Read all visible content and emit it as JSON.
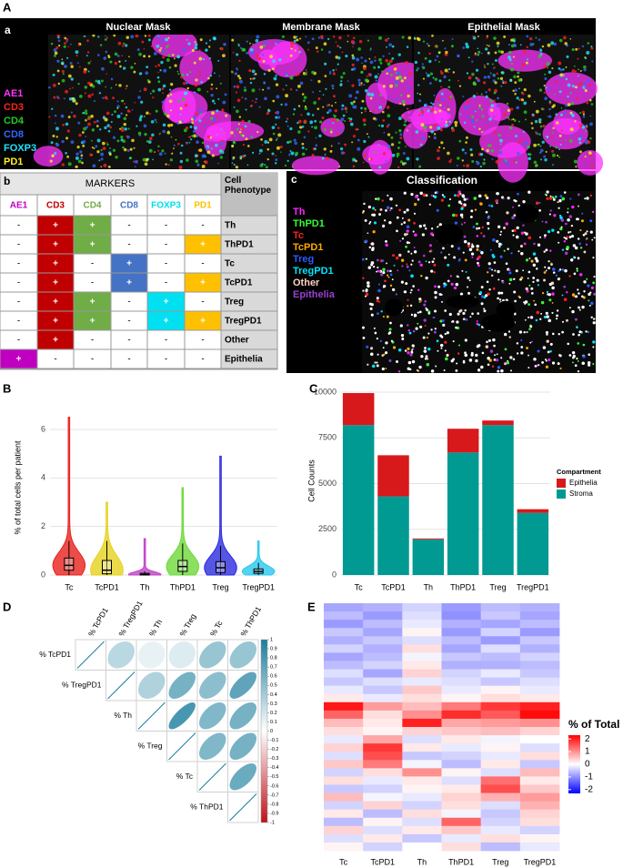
{
  "panel_a": {
    "figure_label": "A",
    "label": "a",
    "images": [
      "Nuclear Mask",
      "Membrane Mask",
      "Epithelial Mask"
    ],
    "markers": [
      {
        "name": "AE1",
        "color": "#ff33ff"
      },
      {
        "name": "CD3",
        "color": "#ff2020"
      },
      {
        "name": "CD4",
        "color": "#22cc22"
      },
      {
        "name": "CD8",
        "color": "#3366ff"
      },
      {
        "name": "FOXP3",
        "color": "#22e5ff"
      },
      {
        "name": "PD1",
        "color": "#ffee22"
      }
    ]
  },
  "panel_b": {
    "label": "b",
    "header": "MARKERS",
    "phenotype_header": "Cell Phenotype",
    "columns": [
      {
        "name": "AE1",
        "color": "#c000c0"
      },
      {
        "name": "CD3",
        "color": "#c00000"
      },
      {
        "name": "CD4",
        "color": "#70ad47"
      },
      {
        "name": "CD8",
        "color": "#4472c4"
      },
      {
        "name": "FOXP3",
        "color": "#00e0f0"
      },
      {
        "name": "PD1",
        "color": "#ffc000"
      }
    ],
    "rows": [
      {
        "cells": [
          "-",
          "+",
          "+",
          "-",
          "-",
          "-"
        ],
        "phenotype": "Th"
      },
      {
        "cells": [
          "-",
          "+",
          "+",
          "-",
          "-",
          "+"
        ],
        "phenotype": "ThPD1"
      },
      {
        "cells": [
          "-",
          "+",
          "-",
          "+",
          "-",
          "-"
        ],
        "phenotype": "Tc"
      },
      {
        "cells": [
          "-",
          "+",
          "-",
          "+",
          "-",
          "+"
        ],
        "phenotype": "TcPD1"
      },
      {
        "cells": [
          "-",
          "+",
          "+",
          "-",
          "+",
          "-"
        ],
        "phenotype": "Treg"
      },
      {
        "cells": [
          "-",
          "+",
          "+",
          "-",
          "+",
          "+"
        ],
        "phenotype": "TregPD1"
      },
      {
        "cells": [
          "-",
          "+",
          "-",
          "-",
          "-",
          "-"
        ],
        "phenotype": "Other"
      },
      {
        "cells": [
          "+",
          "-",
          "-",
          "-",
          "-",
          "-"
        ],
        "phenotype": "Epithelia"
      }
    ]
  },
  "panel_c": {
    "label": "c",
    "title": "Classification",
    "classes": [
      {
        "name": "Th",
        "color": "#ff22ff"
      },
      {
        "name": "ThPD1",
        "color": "#33ff33"
      },
      {
        "name": "Tc",
        "color": "#ff2020"
      },
      {
        "name": "TcPD1",
        "color": "#ffaa00"
      },
      {
        "name": "Treg",
        "color": "#2a5cff"
      },
      {
        "name": "TregPD1",
        "color": "#00e5ff"
      },
      {
        "name": "Other",
        "color": "#ffd0c0"
      },
      {
        "name": "Epithelia",
        "color": "#9a3fcf"
      }
    ]
  },
  "chart_data": [
    {
      "type": "box",
      "panel_label": "B",
      "y_label": "% of total cells per patient",
      "categories": [
        "Tc",
        "TcPD1",
        "Th",
        "ThPD1",
        "Treg",
        "TregPD1"
      ],
      "colors": [
        "#e8201c",
        "#e6d21e",
        "#c040c8",
        "#6ed83a",
        "#2a2ae0",
        "#28c8ee"
      ],
      "whisker_low": [
        0,
        0,
        0,
        0,
        0,
        0
      ],
      "q1": [
        0.2,
        0.05,
        0,
        0.15,
        0.1,
        0.07
      ],
      "median": [
        0.4,
        0.2,
        0.02,
        0.35,
        0.3,
        0.15
      ],
      "q3": [
        0.7,
        0.6,
        0.07,
        0.6,
        0.55,
        0.25
      ],
      "whisker_high": [
        1.4,
        1.4,
        0.15,
        1.3,
        1.2,
        0.5
      ],
      "max": [
        6.5,
        3.0,
        1.5,
        3.6,
        4.9,
        1.4
      ],
      "ylim": [
        0,
        7.2
      ],
      "yticks": [
        0,
        2,
        4,
        6
      ],
      "grid": true
    },
    {
      "type": "stacked_bar",
      "panel_label": "C",
      "y_label": "Cell Counts",
      "categories": [
        "Tc",
        "TcPD1",
        "Th",
        "ThPD1",
        "Treg",
        "TregPD1"
      ],
      "legend_title": "Compartment",
      "legend": "right",
      "series": [
        {
          "name": "Epithelia",
          "color": "#d7191c",
          "values": [
            1750,
            2250,
            50,
            1300,
            250,
            200
          ]
        },
        {
          "name": "Stroma",
          "color": "#009a93",
          "values": [
            8200,
            4300,
            1950,
            6700,
            8200,
            3400
          ]
        }
      ],
      "ylim": [
        0,
        10300
      ],
      "yticks": [
        0,
        2500,
        5000,
        7500,
        10000
      ],
      "grid": true
    },
    {
      "type": "correlation",
      "panel_label": "D",
      "labels": [
        "% TcPD1",
        "% TregPD1",
        "% Th",
        "% Treg",
        "% Tc",
        "% ThPD1"
      ],
      "matrix": [
        [
          1,
          0.3,
          0.1,
          0.15,
          0.45,
          0.45
        ],
        [
          null,
          1,
          0.35,
          0.6,
          0.5,
          0.7
        ],
        [
          null,
          null,
          1,
          0.8,
          0.55,
          0.6
        ],
        [
          null,
          null,
          null,
          1,
          0.55,
          0.6
        ],
        [
          null,
          null,
          null,
          null,
          1,
          0.65
        ],
        [
          null,
          null,
          null,
          null,
          null,
          1
        ]
      ],
      "clim": [
        -1,
        1
      ],
      "cticks": [
        1,
        0.9,
        0.8,
        0.7,
        0.6,
        0.5,
        0.4,
        0.3,
        0.2,
        0.1,
        0,
        -0.1,
        -0.2,
        -0.3,
        -0.4,
        -0.5,
        -0.6,
        -0.7,
        -0.8,
        -0.9,
        -1
      ],
      "colorscale": [
        "#c0101a",
        "#ffffff",
        "#1a7d9c"
      ]
    },
    {
      "type": "heatmap",
      "panel_label": "E",
      "legend_title": "% of Total",
      "columns": [
        "Tc",
        "TcPD1",
        "Th",
        "ThPD1",
        "Treg",
        "TregPD1"
      ],
      "values": [
        [
          -0.8,
          -0.7,
          -0.4,
          -0.9,
          -0.6,
          -0.7
        ],
        [
          -0.6,
          -0.9,
          -0.3,
          -1.0,
          -0.5,
          -0.8
        ],
        [
          -0.9,
          -0.6,
          -0.2,
          -0.7,
          -0.8,
          -0.6
        ],
        [
          -0.5,
          -0.8,
          0.1,
          -0.9,
          -0.4,
          -0.9
        ],
        [
          -0.7,
          -0.5,
          -0.3,
          -0.6,
          -0.9,
          -0.5
        ],
        [
          -0.4,
          -0.7,
          0.3,
          -0.8,
          -0.3,
          -0.7
        ],
        [
          -0.8,
          -0.6,
          -0.1,
          -0.5,
          -0.6,
          -0.4
        ],
        [
          -0.6,
          -0.4,
          0.2,
          -0.7,
          -0.7,
          -0.6
        ],
        [
          -0.3,
          -0.8,
          0.4,
          -0.4,
          -0.2,
          -0.5
        ],
        [
          -0.5,
          -0.3,
          -0.2,
          -0.3,
          -0.5,
          -0.3
        ],
        [
          -0.2,
          -0.5,
          0.5,
          -0.2,
          0.1,
          -0.2
        ],
        [
          0.2,
          -0.2,
          0.3,
          0.1,
          0.3,
          0.2
        ],
        [
          2.1,
          0.9,
          0.6,
          1.2,
          1.8,
          2.0
        ],
        [
          1.4,
          0.3,
          1.0,
          1.9,
          1.5,
          2.2
        ],
        [
          0.6,
          0.2,
          2.0,
          0.8,
          0.9,
          1.0
        ],
        [
          0.3,
          0.1,
          0.4,
          0.5,
          0.6,
          0.4
        ],
        [
          -0.2,
          0.8,
          -0.3,
          0.2,
          -0.1,
          0.0
        ],
        [
          0.4,
          1.8,
          0.2,
          -0.2,
          0.1,
          -0.3
        ],
        [
          -0.3,
          1.6,
          -0.5,
          -0.4,
          -0.2,
          0.3
        ],
        [
          0.5,
          1.2,
          -0.1,
          -0.6,
          0.2,
          -0.5
        ],
        [
          -0.4,
          0.3,
          1.0,
          0.1,
          -0.3,
          0.6
        ],
        [
          0.3,
          -0.2,
          0.2,
          -0.3,
          1.3,
          0.2
        ],
        [
          -0.5,
          -0.4,
          0.1,
          0.2,
          1.6,
          0.5
        ],
        [
          0.6,
          -0.1,
          -0.2,
          0.4,
          0.7,
          0.9
        ],
        [
          -0.4,
          0.4,
          -0.4,
          0.3,
          -0.3,
          0.7
        ],
        [
          0.2,
          -0.6,
          0.3,
          -0.1,
          -0.5,
          0.4
        ],
        [
          -0.6,
          0.1,
          -0.3,
          1.4,
          -0.4,
          0.3
        ],
        [
          0.4,
          -0.3,
          0.2,
          0.5,
          -0.2,
          -0.4
        ],
        [
          -0.3,
          0.2,
          -0.5,
          -0.2,
          0.3,
          0.1
        ],
        [
          0.1,
          -0.4,
          0.0,
          0.3,
          -0.6,
          -0.2
        ]
      ],
      "clim": [
        -2.3,
        2.3
      ],
      "cticks": [
        2,
        1,
        0,
        -1,
        -2
      ],
      "colorscale": [
        "#0000ff",
        "#ffffff",
        "#ff0000"
      ]
    }
  ]
}
